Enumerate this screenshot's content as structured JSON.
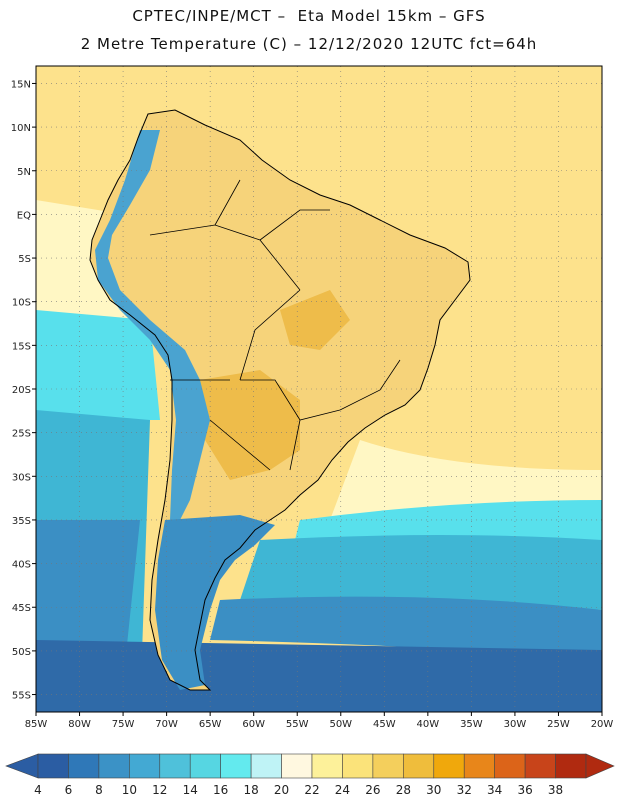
{
  "header": {
    "line1": "CPTEC/INPE/MCT –  Eta Model 15km – GFS",
    "line2": "2 Metre Temperature (C) – 12/12/2020 12UTC fct=64h"
  },
  "map": {
    "lat_labels": [
      "15N",
      "10N",
      "5N",
      "EQ",
      "5S",
      "10S",
      "15S",
      "20S",
      "25S",
      "30S",
      "35S",
      "40S",
      "45S",
      "50S",
      "55S"
    ],
    "lon_labels": [
      "85W",
      "80W",
      "75W",
      "70W",
      "65W",
      "60W",
      "55W",
      "50W",
      "45W",
      "40W",
      "35W",
      "30W",
      "25W",
      "20W"
    ],
    "lat_values": [
      15,
      10,
      5,
      0,
      -5,
      -10,
      -15,
      -20,
      -25,
      -30,
      -35,
      -40,
      -45,
      -50,
      -55
    ],
    "lon_values": [
      -85,
      -80,
      -75,
      -70,
      -65,
      -60,
      -55,
      -50,
      -45,
      -40,
      -35,
      -30,
      -25,
      -20
    ],
    "extent": {
      "lon_min": -85,
      "lon_max": -20,
      "lat_min": -57,
      "lat_max": 17
    },
    "colors": {
      "warm_ocean": "#fde28c",
      "mid_ocean": "#fff7c4",
      "land_warm": "#f6d37a",
      "land_hot": "#eebc4a",
      "cool_ocean": "#58e0ec",
      "cold_ocean": "#3fb6d4",
      "colder_ocean": "#3b8fc4",
      "coldest_ocean": "#2f6aa8",
      "andes": "#4aa3d0",
      "coast": "#000000"
    }
  },
  "colorbar": {
    "labels": [
      "4",
      "6",
      "8",
      "10",
      "12",
      "14",
      "16",
      "18",
      "20",
      "22",
      "24",
      "26",
      "28",
      "30",
      "32",
      "34",
      "36",
      "38"
    ],
    "colors": [
      "#2b5da3",
      "#2f78b8",
      "#3b92c6",
      "#43a9d3",
      "#4fc1da",
      "#56d6e2",
      "#63eaee",
      "#bff3f6",
      "#fff8e0",
      "#fdf19a",
      "#fbe37a",
      "#f4cf5c",
      "#efbd3c",
      "#f0a80c",
      "#e8861a",
      "#dc6419",
      "#c8441a",
      "#b02a10"
    ]
  }
}
